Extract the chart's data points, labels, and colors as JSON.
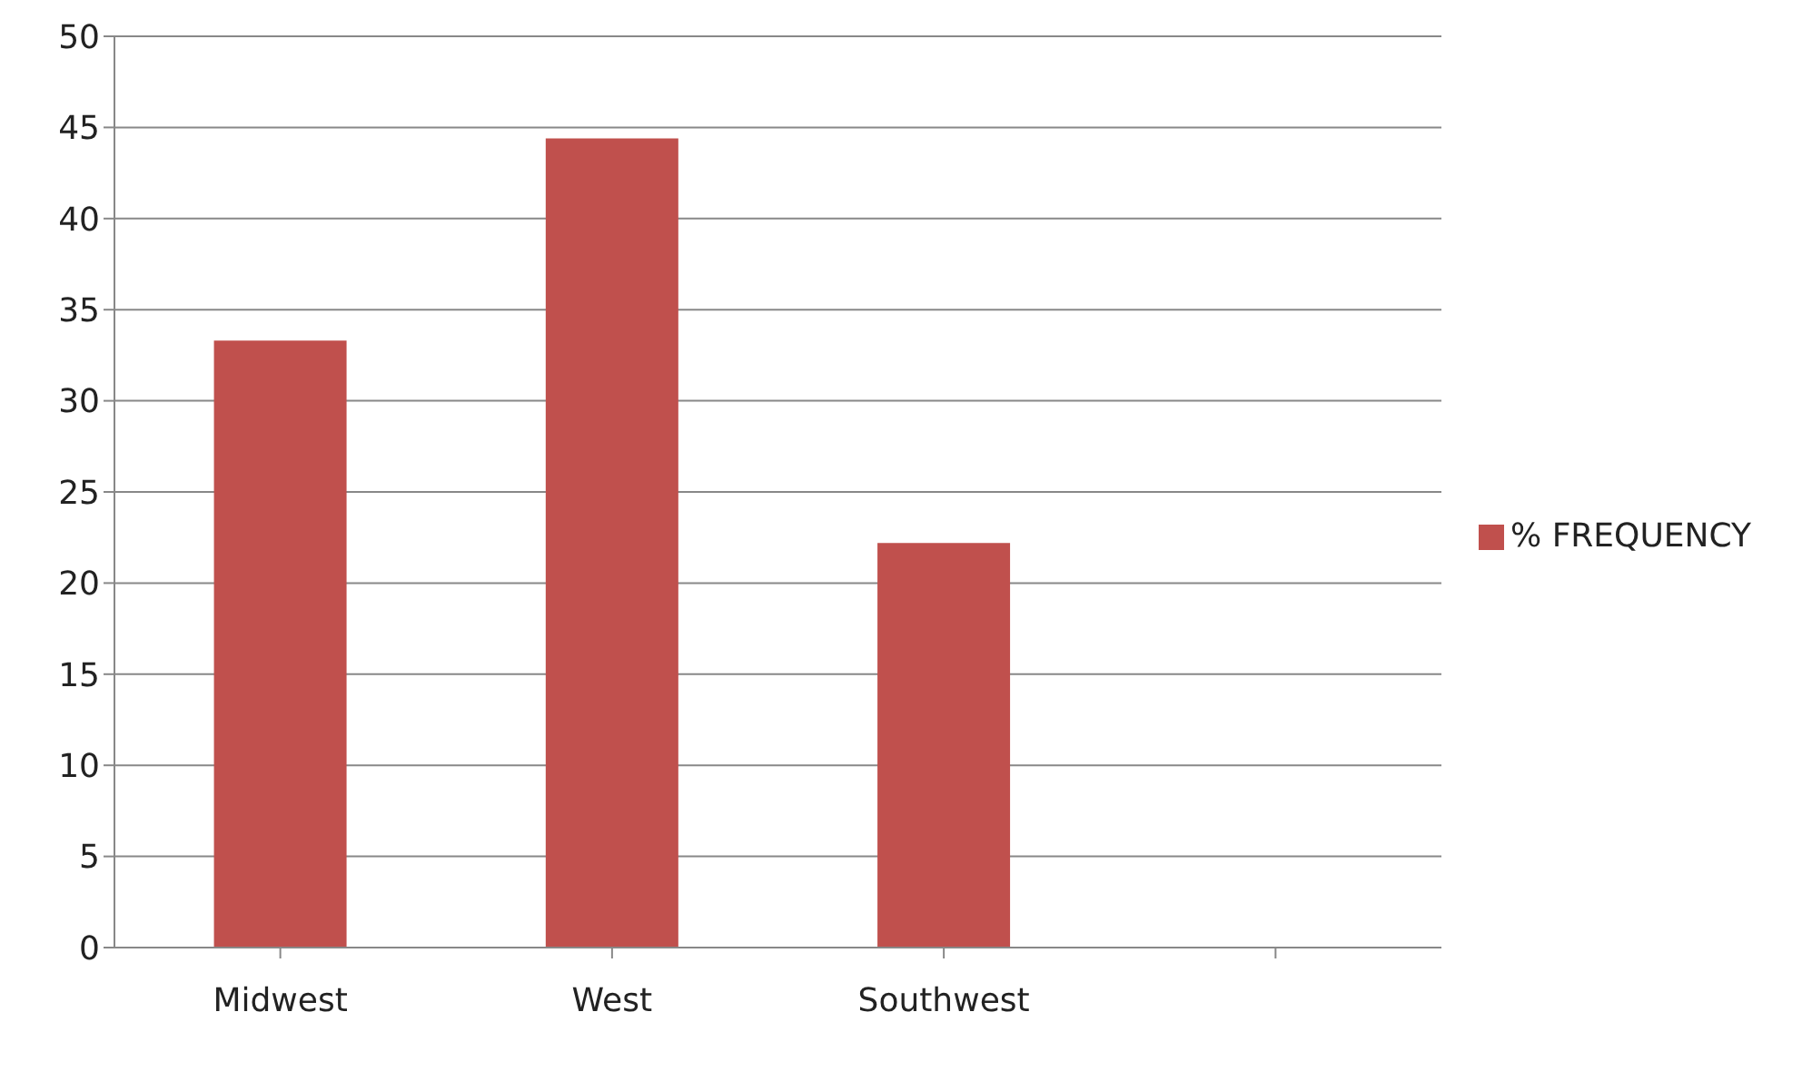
{
  "chart_data": {
    "type": "bar",
    "categories": [
      "Midwest",
      "West",
      "Southwest",
      null
    ],
    "series": [
      {
        "name": "% FREQUENCY",
        "color": "#c0504d",
        "values": [
          33.3,
          44.4,
          22.2,
          null
        ]
      }
    ],
    "ylim": [
      0,
      50
    ],
    "yticks": [
      0,
      5,
      10,
      15,
      20,
      25,
      30,
      35,
      40,
      45,
      50
    ],
    "grid": "y",
    "legend": "right"
  }
}
